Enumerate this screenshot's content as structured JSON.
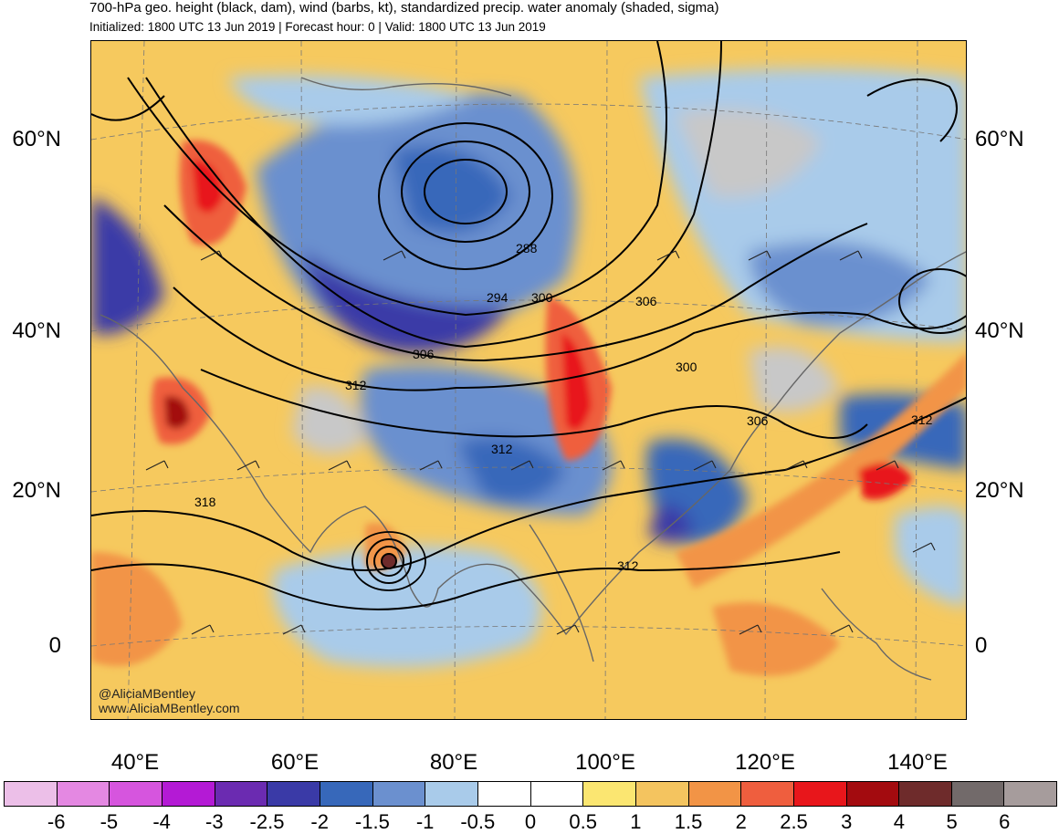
{
  "header": {
    "title": "700-hPa geo. height (black, dam), wind (barbs, kt), standardized precip. water anomaly (shaded, sigma)",
    "subtitle": "Initialized: 1800 UTC 13 Jun 2019 | Forecast hour: 0 | Valid: 1800 UTC 13 Jun 2019"
  },
  "map": {
    "lat_labels": [
      "60°N",
      "40°N",
      "20°N",
      "0"
    ],
    "lon_labels": [
      "40°E",
      "60°E",
      "80°E",
      "100°E",
      "120°E",
      "140°E"
    ],
    "contour_labels": [
      "288",
      "294",
      "300",
      "306",
      "306",
      "312",
      "300",
      "312",
      "306",
      "312",
      "318",
      "312"
    ],
    "credit_handle": "@AliciaMBentley",
    "credit_url": "www.AliciaMBentley.com"
  },
  "colorbar": {
    "labels": [
      "-6",
      "-5",
      "-4",
      "-3",
      "-2.5",
      "-2",
      "-1.5",
      "-1",
      "-0.5",
      "0",
      "0.5",
      "1",
      "1.5",
      "2",
      "2.5",
      "3",
      "4",
      "5",
      "6"
    ],
    "colors": [
      "#ecbfe8",
      "#e488e2",
      "#d655de",
      "#b41ad5",
      "#6b2bb1",
      "#3a3aa7",
      "#3768ba",
      "#6b90cf",
      "#a9cbea",
      "#ffffff",
      "#ffffff",
      "#fbe671",
      "#f4c45f",
      "#f29446",
      "#ef5e3e",
      "#e8161b",
      "#a30b0f",
      "#6e2b2b",
      "#726a6a",
      "#a69c9c"
    ]
  }
}
